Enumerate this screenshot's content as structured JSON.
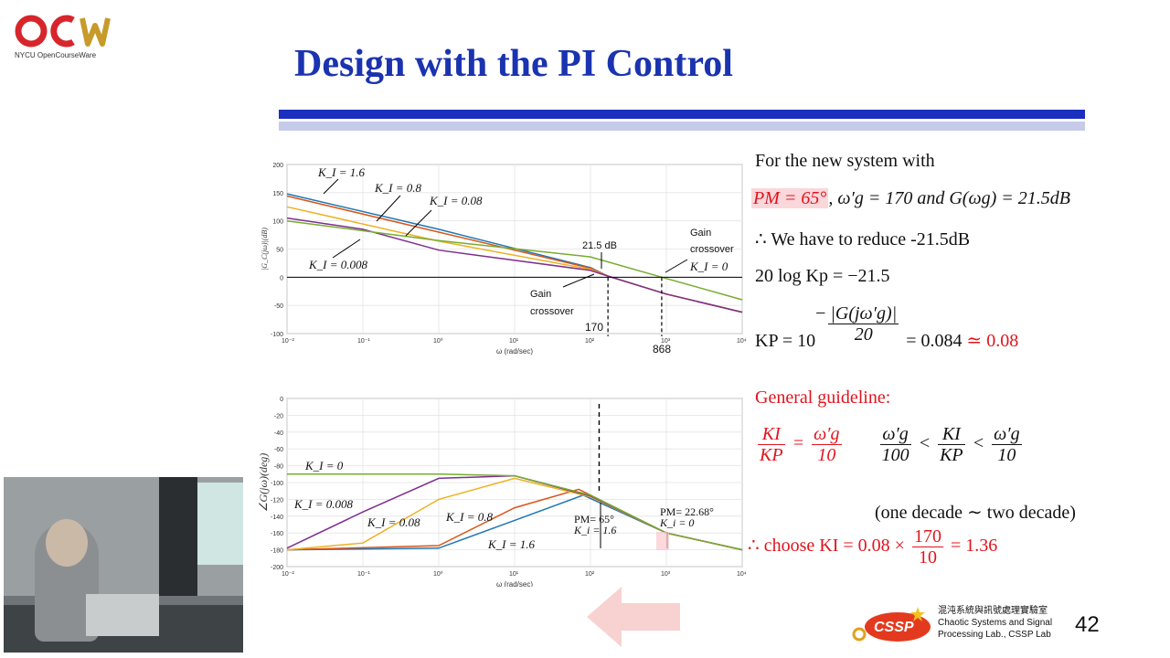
{
  "logo": {
    "text": "OCW",
    "subtitle": "NYCU OpenCourseWare"
  },
  "slide_title": "Design with the PI Control",
  "chart_data": [
    {
      "type": "line",
      "ylabel": "|G_C(jω)|(dB)",
      "xlabel": "ω (rad/sec)",
      "xscale": "log",
      "xlim": [
        0.01,
        10000
      ],
      "ylim": [
        -100,
        200
      ],
      "yticks": [
        200,
        150,
        100,
        50,
        0,
        -50,
        -100
      ],
      "xticks": [
        "10⁻²",
        "10⁻¹",
        "10⁰",
        "10¹",
        "10²",
        "10³",
        "10⁴"
      ],
      "grid": true,
      "colors": {
        "KI_1.6": "#1f77b4",
        "KI_0.8": "#d9541a",
        "KI_0.08": "#edb120",
        "KI_0.008": "#7e2f8e",
        "KI_0": "#77ac30"
      },
      "series_labels": [
        "K_I = 1.6",
        "K_I = 0.8",
        "K_I = 0.08",
        "K_I = 0.008",
        "K_I = 0"
      ],
      "series_values": {
        "KI_1.6": [
          [
            0.01,
            148
          ],
          [
            1,
            85
          ],
          [
            100,
            17
          ],
          [
            170,
            2
          ],
          [
            1000,
            -30
          ],
          [
            10000,
            -62
          ]
        ],
        "KI_0.8": [
          [
            0.01,
            144
          ],
          [
            1,
            80
          ],
          [
            100,
            16
          ],
          [
            170,
            2
          ],
          [
            1000,
            -30
          ],
          [
            10000,
            -62
          ]
        ],
        "KI_0.08": [
          [
            0.01,
            125
          ],
          [
            1,
            64
          ],
          [
            100,
            14
          ],
          [
            170,
            2
          ],
          [
            1000,
            -30
          ],
          [
            10000,
            -62
          ]
        ],
        "KI_0.008": [
          [
            0.01,
            105
          ],
          [
            0.1,
            85
          ],
          [
            1,
            48
          ],
          [
            100,
            12
          ],
          [
            170,
            2
          ],
          [
            1000,
            -30
          ],
          [
            10000,
            -62
          ]
        ],
        "KI_0": [
          [
            0.01,
            100
          ],
          [
            1,
            65
          ],
          [
            100,
            36
          ],
          [
            868,
            0
          ],
          [
            10000,
            -40
          ]
        ]
      },
      "annotations": [
        "21.5 dB",
        "Gain crossover",
        "Gain crossover",
        "K_I = 0",
        "170",
        "868"
      ]
    },
    {
      "type": "line",
      "ylabel": "∠G(jω)(deg)",
      "xlabel": "ω (rad/sec)",
      "xscale": "log",
      "xlim": [
        0.01,
        10000
      ],
      "ylim": [
        -200,
        0
      ],
      "yticks": [
        0,
        -20,
        -40,
        -60,
        -80,
        -100,
        -120,
        -140,
        -160,
        -180,
        -200
      ],
      "xticks": [
        "10⁻²",
        "10⁻¹",
        "10⁰",
        "10¹",
        "10²",
        "10³",
        "10⁴"
      ],
      "grid": true,
      "series_labels": [
        "K_I = 0",
        "K_I = 0.008",
        "K_I = 0.08",
        "K_I = 0.8",
        "K_I = 1.6"
      ],
      "series_values": {
        "KI_0": [
          [
            0.01,
            -90
          ],
          [
            1,
            -90
          ],
          [
            10,
            -92
          ],
          [
            100,
            -115
          ],
          [
            1000,
            -160
          ],
          [
            10000,
            -180
          ]
        ],
        "KI_0.008": [
          [
            0.01,
            -178
          ],
          [
            0.1,
            -135
          ],
          [
            1,
            -95
          ],
          [
            10,
            -92
          ],
          [
            100,
            -116
          ],
          [
            1000,
            -160
          ],
          [
            10000,
            -180
          ]
        ],
        "KI_0.08": [
          [
            0.01,
            -180
          ],
          [
            0.1,
            -172
          ],
          [
            1,
            -120
          ],
          [
            10,
            -95
          ],
          [
            100,
            -117
          ],
          [
            1000,
            -160
          ],
          [
            10000,
            -180
          ]
        ],
        "KI_0.8": [
          [
            0.01,
            -180
          ],
          [
            1,
            -175
          ],
          [
            10,
            -130
          ],
          [
            70,
            -108
          ],
          [
            1000,
            -160
          ],
          [
            10000,
            -180
          ]
        ],
        "KI_1.6": [
          [
            0.01,
            -180
          ],
          [
            1,
            -178
          ],
          [
            10,
            -145
          ],
          [
            80,
            -115
          ],
          [
            1000,
            -160
          ],
          [
            10000,
            -180
          ]
        ]
      },
      "annotations": [
        "PM= 65°",
        "K_i = 1.6",
        "PM= 22.68°",
        "K_i = 0"
      ]
    }
  ],
  "right": {
    "line1": "For the new system with",
    "pm": "PM = 65°",
    "line2_rest": ", ω′g = 170 and G(ωg) = 21.5dB",
    "line3": "∴ We have to reduce -21.5dB",
    "line4": "20 log Kp = −21.5",
    "kp_lhs": "KP = 10",
    "kp_exp_num": "|G(jω′g)|",
    "kp_exp_den": "20",
    "kp_eq": "= 0.084",
    "kp_approx": "≃ 0.08",
    "guideline": "General guideline:",
    "g_lhs_num": "KI",
    "g_lhs_den": "KP",
    "g_eq": "=",
    "g_rhs_num": "ω′g",
    "g_rhs_den": "10",
    "ineq_a_num": "ω′g",
    "ineq_a_den": "100",
    "lt": "<",
    "ineq_b_num": "KI",
    "ineq_b_den": "KP",
    "ineq_c_num": "ω′g",
    "ineq_c_den": "10",
    "decade": "(one decade ∼ two decade)",
    "choose": "∴ choose KI = 0.08 ×",
    "choose_num": "170",
    "choose_den": "10",
    "choose_res": "= 1.36"
  },
  "footer": {
    "lab_cn": "混沌系統與訊號處理實驗室",
    "lab_en1": "Chaotic Systems and Signal",
    "lab_en2": "Processing Lab., CSSP Lab",
    "cssp": "CSSP",
    "page": "42"
  }
}
